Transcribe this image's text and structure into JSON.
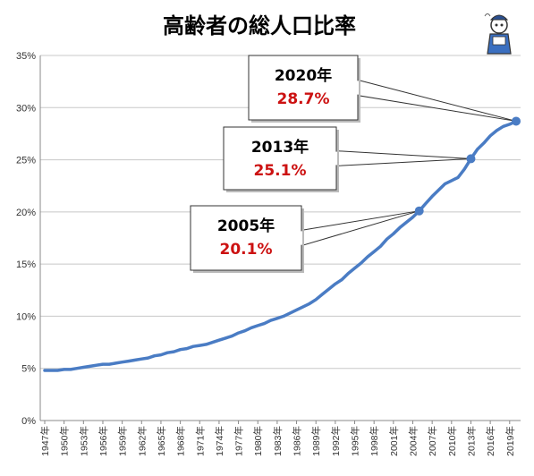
{
  "chart_data": {
    "type": "line",
    "title": "高齢者の総人口比率",
    "xlabel": "",
    "ylabel": "",
    "ylim": [
      0,
      35
    ],
    "yticks": [
      "0%",
      "5%",
      "10%",
      "15%",
      "20%",
      "25%",
      "30%",
      "35%"
    ],
    "xticks": [
      "1947年",
      "1950年",
      "1953年",
      "1956年",
      "1959年",
      "1962年",
      "1965年",
      "1968年",
      "1971年",
      "1974年",
      "1977年",
      "1980年",
      "1983年",
      "1986年",
      "1989年",
      "1992年",
      "1995年",
      "1998年",
      "2001年",
      "2004年",
      "2007年",
      "2010年",
      "2013年",
      "2016年",
      "2019年"
    ],
    "grid": true,
    "legend": "none",
    "color": "#4a7cc4",
    "series": [
      {
        "x": [
          1947,
          1948,
          1949,
          1950,
          1951,
          1952,
          1953,
          1954,
          1955,
          1956,
          1957,
          1958,
          1959,
          1960,
          1961,
          1962,
          1963,
          1964,
          1965,
          1966,
          1967,
          1968,
          1969,
          1970,
          1971,
          1972,
          1973,
          1974,
          1975,
          1976,
          1977,
          1978,
          1979,
          1980,
          1981,
          1982,
          1983,
          1984,
          1985,
          1986,
          1987,
          1988,
          1989,
          1990,
          1991,
          1992,
          1993,
          1994,
          1995,
          1996,
          1997,
          1998,
          1999,
          2000,
          2001,
          2002,
          2003,
          2004,
          2005,
          2006,
          2007,
          2008,
          2009,
          2010,
          2011,
          2012,
          2013,
          2014,
          2015,
          2016,
          2017,
          2018,
          2019,
          2020
        ],
        "values": [
          4.8,
          4.8,
          4.8,
          4.9,
          4.9,
          5.0,
          5.1,
          5.2,
          5.3,
          5.4,
          5.4,
          5.5,
          5.6,
          5.7,
          5.8,
          5.9,
          6.0,
          6.2,
          6.3,
          6.5,
          6.6,
          6.8,
          6.9,
          7.1,
          7.2,
          7.3,
          7.5,
          7.7,
          7.9,
          8.1,
          8.4,
          8.6,
          8.9,
          9.1,
          9.3,
          9.6,
          9.8,
          10.0,
          10.3,
          10.6,
          10.9,
          11.2,
          11.6,
          12.1,
          12.6,
          13.1,
          13.5,
          14.1,
          14.6,
          15.1,
          15.7,
          16.2,
          16.7,
          17.4,
          17.9,
          18.5,
          19.0,
          19.5,
          20.1,
          20.8,
          21.5,
          22.1,
          22.7,
          23.0,
          23.3,
          24.1,
          25.1,
          26.0,
          26.6,
          27.3,
          27.8,
          28.2,
          28.4,
          28.7
        ]
      }
    ],
    "annotations": [
      {
        "year_label": "2020年",
        "value_label": "28.7%",
        "x": 2020,
        "y": 28.7
      },
      {
        "year_label": "2013年",
        "value_label": "25.1%",
        "x": 2013,
        "y": 25.1
      },
      {
        "year_label": "2005年",
        "value_label": "20.1%",
        "x": 2005,
        "y": 20.1
      }
    ]
  }
}
